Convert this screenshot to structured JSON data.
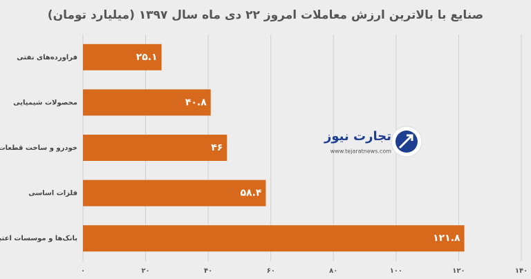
{
  "chart_data": {
    "type": "bar",
    "orientation": "horizontal",
    "title": "صنایع با بالاترین ارزش معاملات امروز ۲۲ دی ماه سال ۱۳۹۷ (میلیارد تومان)",
    "categories": [
      "فراورده‌های نفتی",
      "محصولات شیمیایی",
      "خودرو و ساخت قطعات",
      "فلزات اساسی",
      "بانک‌ها و موسسات اعتباری"
    ],
    "values": [
      25.1,
      40.8,
      46,
      58.4,
      121.8
    ],
    "value_labels": [
      "۲۵.۱",
      "۴۰.۸",
      "۴۶",
      "۵۸.۴",
      "۱۲۱.۸"
    ],
    "color": "#d7691d",
    "xlim": [
      0,
      140
    ],
    "xticks": [
      {
        "value": 0,
        "label": "۰"
      },
      {
        "value": 20,
        "label": "۲۰"
      },
      {
        "value": 40,
        "label": "۴۰"
      },
      {
        "value": 60,
        "label": "۶۰"
      },
      {
        "value": 80,
        "label": "۸۰"
      },
      {
        "value": 100,
        "label": "۱۰۰"
      },
      {
        "value": 120,
        "label": "۱۲۰"
      },
      {
        "value": 140,
        "label": "۱۴۰"
      }
    ],
    "grid": true,
    "watermark": {
      "name": "تجارت نیوز",
      "url": "www.tejaratnews.com"
    }
  }
}
